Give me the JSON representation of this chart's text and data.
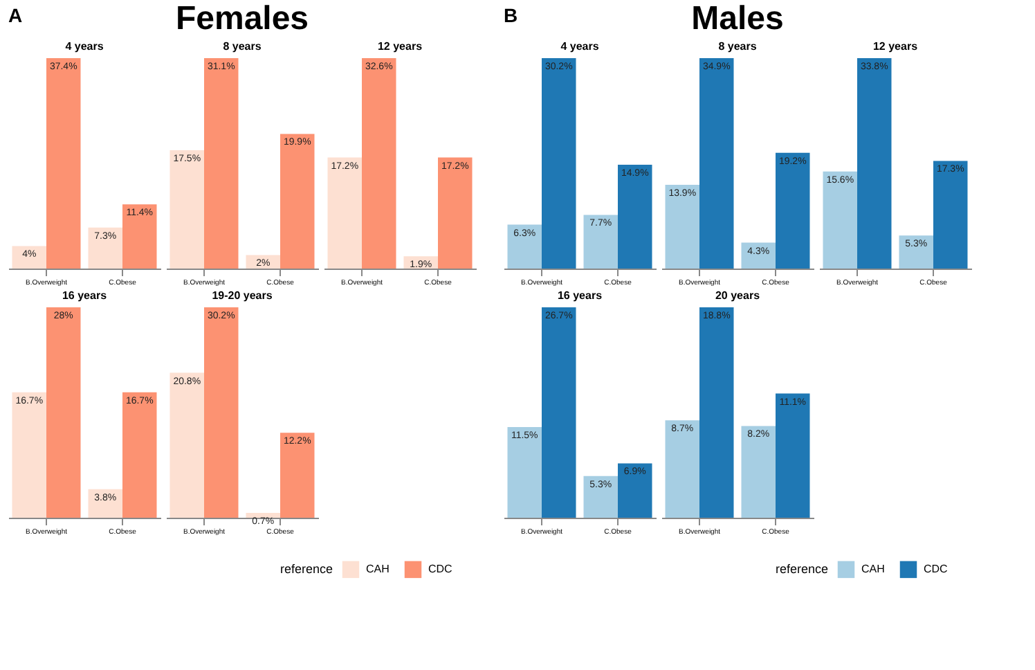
{
  "chart_data": [
    {
      "type": "bar",
      "title": "4 years",
      "annotations": [
        "A",
        "Females"
      ],
      "categories": [
        "B.Overweight",
        "C.Obese"
      ],
      "series": [
        {
          "color": "#fde0d2",
          "values": [
            4,
            7.3
          ],
          "value_labels": [
            "4%",
            "7.3%"
          ]
        },
        {
          "color": "#fc9272",
          "values": [
            37.4,
            11.4
          ],
          "value_labels": [
            "37.4%",
            "11.4%"
          ]
        }
      ]
    },
    {
      "type": "bar",
      "title": "8 years",
      "categories": [
        "B.Overweight",
        "C.Obese"
      ],
      "series": [
        {
          "color": "#fde0d2",
          "values": [
            17.5,
            2
          ],
          "value_labels": [
            "17.5%",
            "2%"
          ]
        },
        {
          "color": "#fc9272",
          "values": [
            31.1,
            19.9
          ],
          "value_labels": [
            "31.1%",
            "19.9%"
          ]
        }
      ]
    },
    {
      "type": "bar",
      "title": "12 years",
      "categories": [
        "B.Overweight",
        "C.Obese"
      ],
      "series": [
        {
          "color": "#fde0d2",
          "values": [
            17.2,
            1.9
          ],
          "value_labels": [
            "17.2%",
            "1.9%"
          ]
        },
        {
          "color": "#fc9272",
          "values": [
            32.6,
            17.2
          ],
          "value_labels": [
            "32.6%",
            "17.2%"
          ]
        }
      ]
    },
    {
      "type": "bar",
      "title": "16 years",
      "categories": [
        "B.Overweight",
        "C.Obese"
      ],
      "series": [
        {
          "color": "#fde0d2",
          "values": [
            16.7,
            3.8
          ],
          "value_labels": [
            "16.7%",
            "3.8%"
          ]
        },
        {
          "color": "#fc9272",
          "values": [
            28,
            16.7
          ],
          "value_labels": [
            "28%",
            "16.7%"
          ]
        }
      ]
    },
    {
      "type": "bar",
      "title": "19-20 years",
      "categories": [
        "B.Overweight",
        "C.Obese"
      ],
      "legend": "bottom right",
      "legend_title": "reference",
      "series": [
        {
          "name": "CAH",
          "color": "#fde0d2",
          "values": [
            20.8,
            0.7
          ],
          "value_labels": [
            "20.8%",
            "0.7%"
          ]
        },
        {
          "name": "CDC",
          "color": "#fc9272",
          "values": [
            30.2,
            12.2
          ],
          "value_labels": [
            "30.2%",
            "12.2%"
          ]
        }
      ]
    },
    {
      "type": "bar",
      "title": "4 years",
      "annotations": [
        "B",
        "Males"
      ],
      "categories": [
        "B.Overweight",
        "C.Obese"
      ],
      "series": [
        {
          "color": "#a6cee3",
          "values": [
            6.3,
            7.7
          ],
          "value_labels": [
            "6.3%",
            "7.7%"
          ]
        },
        {
          "color": "#1f78b4",
          "values": [
            30.2,
            14.9
          ],
          "value_labels": [
            "30.2%",
            "14.9%"
          ]
        }
      ]
    },
    {
      "type": "bar",
      "title": "8 years",
      "categories": [
        "B.Overweight",
        "C.Obese"
      ],
      "series": [
        {
          "color": "#a6cee3",
          "values": [
            13.9,
            4.3
          ],
          "value_labels": [
            "13.9%",
            "4.3%"
          ]
        },
        {
          "color": "#1f78b4",
          "values": [
            34.9,
            19.2
          ],
          "value_labels": [
            "34.9%",
            "19.2%"
          ]
        }
      ]
    },
    {
      "type": "bar",
      "title": "12 years",
      "categories": [
        "B.Overweight",
        "C.Obese"
      ],
      "series": [
        {
          "color": "#a6cee3",
          "values": [
            15.6,
            5.3
          ],
          "value_labels": [
            "15.6%",
            "5.3%"
          ]
        },
        {
          "color": "#1f78b4",
          "values": [
            33.8,
            17.3
          ],
          "value_labels": [
            "33.8%",
            "17.3%"
          ]
        }
      ]
    },
    {
      "type": "bar",
      "title": "16 years",
      "categories": [
        "B.Overweight",
        "C.Obese"
      ],
      "series": [
        {
          "color": "#a6cee3",
          "values": [
            11.5,
            5.3
          ],
          "value_labels": [
            "11.5%",
            "5.3%"
          ]
        },
        {
          "color": "#1f78b4",
          "values": [
            26.7,
            6.9
          ],
          "value_labels": [
            "26.7%",
            "6.9%"
          ]
        }
      ]
    },
    {
      "type": "bar",
      "title": "20 years",
      "categories": [
        "B.Overweight",
        "C.Obese"
      ],
      "legend": "bottom right",
      "legend_title": "reference",
      "series": [
        {
          "name": "CAH",
          "color": "#a6cee3",
          "values": [
            8.7,
            8.2
          ],
          "value_labels": [
            "8.7%",
            "8.2%"
          ]
        },
        {
          "name": "CDC",
          "color": "#1f78b4",
          "values": [
            18.8,
            11.1
          ],
          "value_labels": [
            "18.8%",
            "11.1%"
          ]
        }
      ]
    }
  ]
}
